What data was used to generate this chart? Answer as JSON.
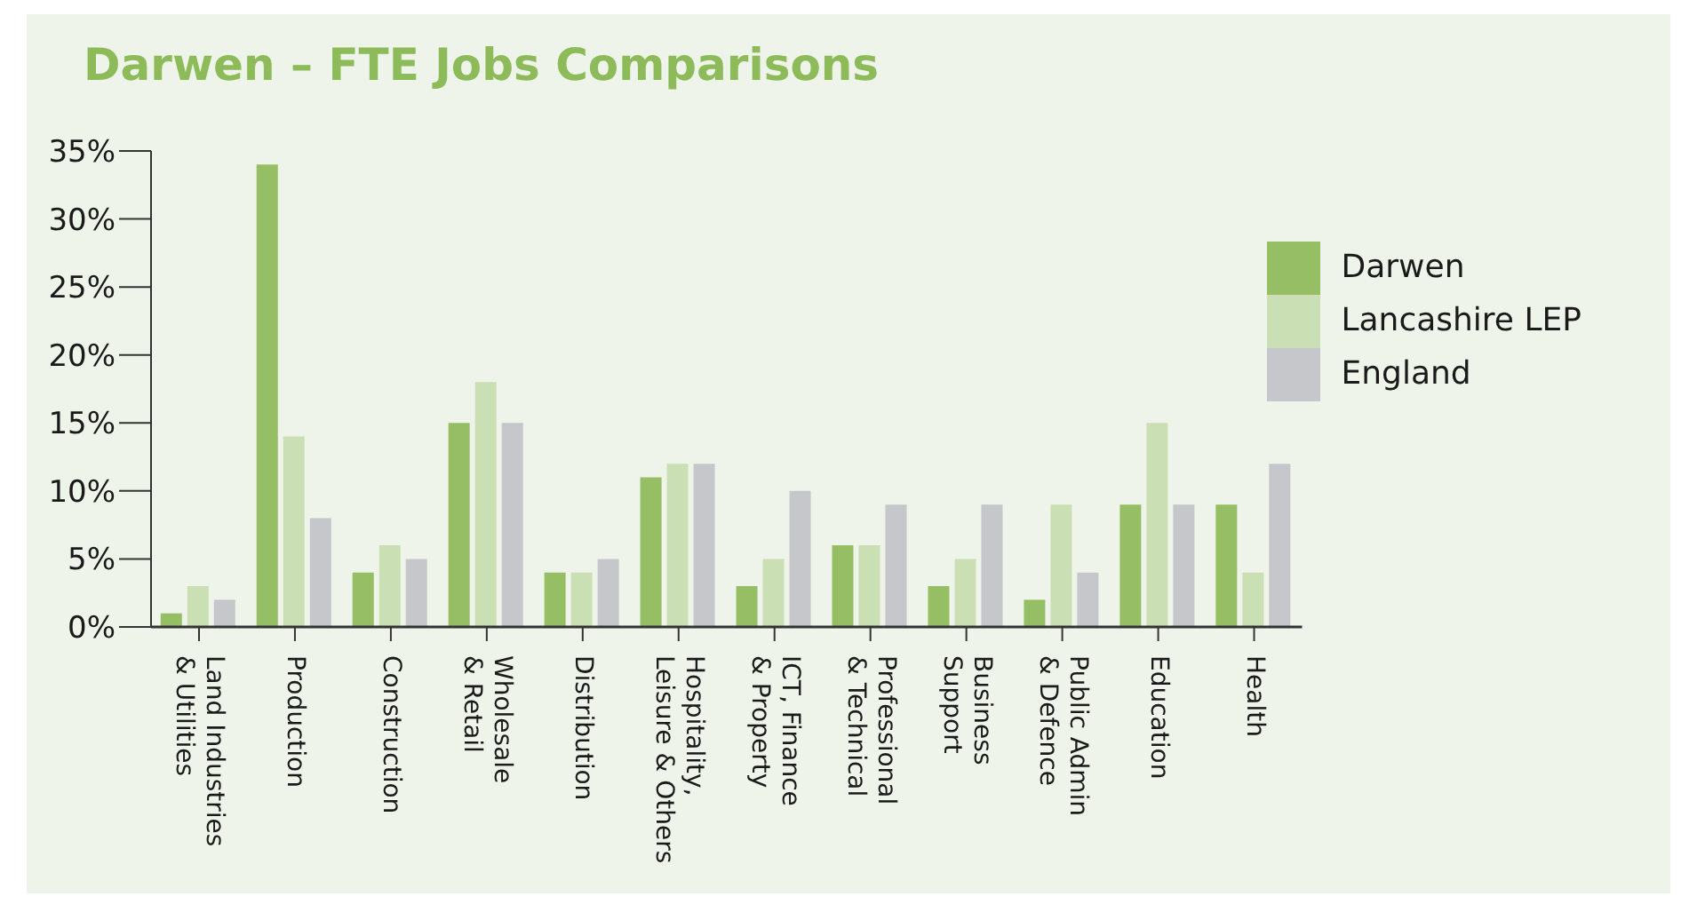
{
  "chart_data": {
    "type": "bar",
    "title": "Darwen – FTE Jobs Comparisons",
    "categories": [
      "Land Industries\n& Utilities",
      "Production",
      "Construction",
      "Wholesale\n& Retail",
      "Distribution",
      "Hospitality,\nLeisure & Others",
      "ICT, Finance\n& Property",
      "Professional\n& Technical",
      "Business\nSupport",
      "Public Admin\n& Defence",
      "Education",
      "Health"
    ],
    "series": [
      {
        "name": "Darwen",
        "color": "#96bf65",
        "values": [
          1,
          34,
          4,
          15,
          4,
          11,
          3,
          6,
          3,
          2,
          9,
          9
        ]
      },
      {
        "name": "Lancashire LEP",
        "color": "#cbdfb4",
        "values": [
          3,
          14,
          6,
          18,
          4,
          12,
          5,
          6,
          5,
          9,
          15,
          4
        ]
      },
      {
        "name": "England",
        "color": "#c5c7ca",
        "values": [
          2,
          8,
          5,
          15,
          5,
          12,
          10,
          9,
          9,
          4,
          9,
          12
        ]
      }
    ],
    "ylim": [
      0,
      35
    ],
    "yticks": [
      {
        "value": 0,
        "label": "0%"
      },
      {
        "value": 5,
        "label": "5%"
      },
      {
        "value": 10,
        "label": "10%"
      },
      {
        "value": 15,
        "label": "15%"
      },
      {
        "value": 20,
        "label": "20%"
      },
      {
        "value": 25,
        "label": "25%"
      },
      {
        "value": 30,
        "label": "30%"
      },
      {
        "value": 35,
        "label": "35%"
      }
    ],
    "grid": false,
    "legend": "top right"
  }
}
